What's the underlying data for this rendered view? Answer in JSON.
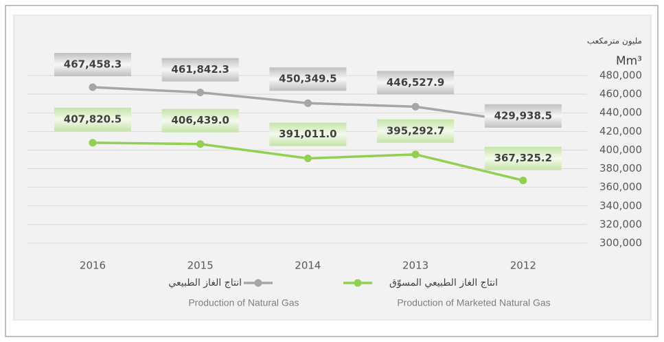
{
  "chart_data": {
    "type": "line",
    "unit_label_ar": "مليون مترمكعب",
    "y_axis_label": "Mm³",
    "categories": [
      "2016",
      "2015",
      "2014",
      "2013",
      "2012"
    ],
    "series": [
      {
        "name": "انتاج الغاز الطبيعي",
        "name_en": "Production of Natural Gas",
        "color": "#a6a6a6",
        "values": [
          467458.3,
          461842.3,
          450349.5,
          446527.9,
          429938.5
        ],
        "value_labels": [
          "467,458.3",
          "461,842.3",
          "450,349.5",
          "446,527.9",
          "429,938.5"
        ]
      },
      {
        "name": "انتاج الغاز الطبيعي المسوّق",
        "name_en": "Production of Marketed Natural Gas",
        "color": "#92d050",
        "values": [
          407820.5,
          406439.0,
          391011.0,
          395292.7,
          367325.2
        ],
        "value_labels": [
          "407,820.5",
          "406,439.0",
          "391,011.0",
          "395,292.7",
          "367,325.2"
        ]
      }
    ],
    "ylim": [
      300000,
      480000
    ],
    "yticks": [
      {
        "value": 300000,
        "label": "300,000"
      },
      {
        "value": 320000,
        "label": "320,000"
      },
      {
        "value": 340000,
        "label": "340,000"
      },
      {
        "value": 360000,
        "label": "360,000"
      },
      {
        "value": 380000,
        "label": "380,000"
      },
      {
        "value": 400000,
        "label": "400,000"
      },
      {
        "value": 420000,
        "label": "420,000"
      },
      {
        "value": 440000,
        "label": "440,000"
      },
      {
        "value": 460000,
        "label": "460,000"
      },
      {
        "value": 480000,
        "label": "480,000"
      }
    ],
    "grid": true
  }
}
